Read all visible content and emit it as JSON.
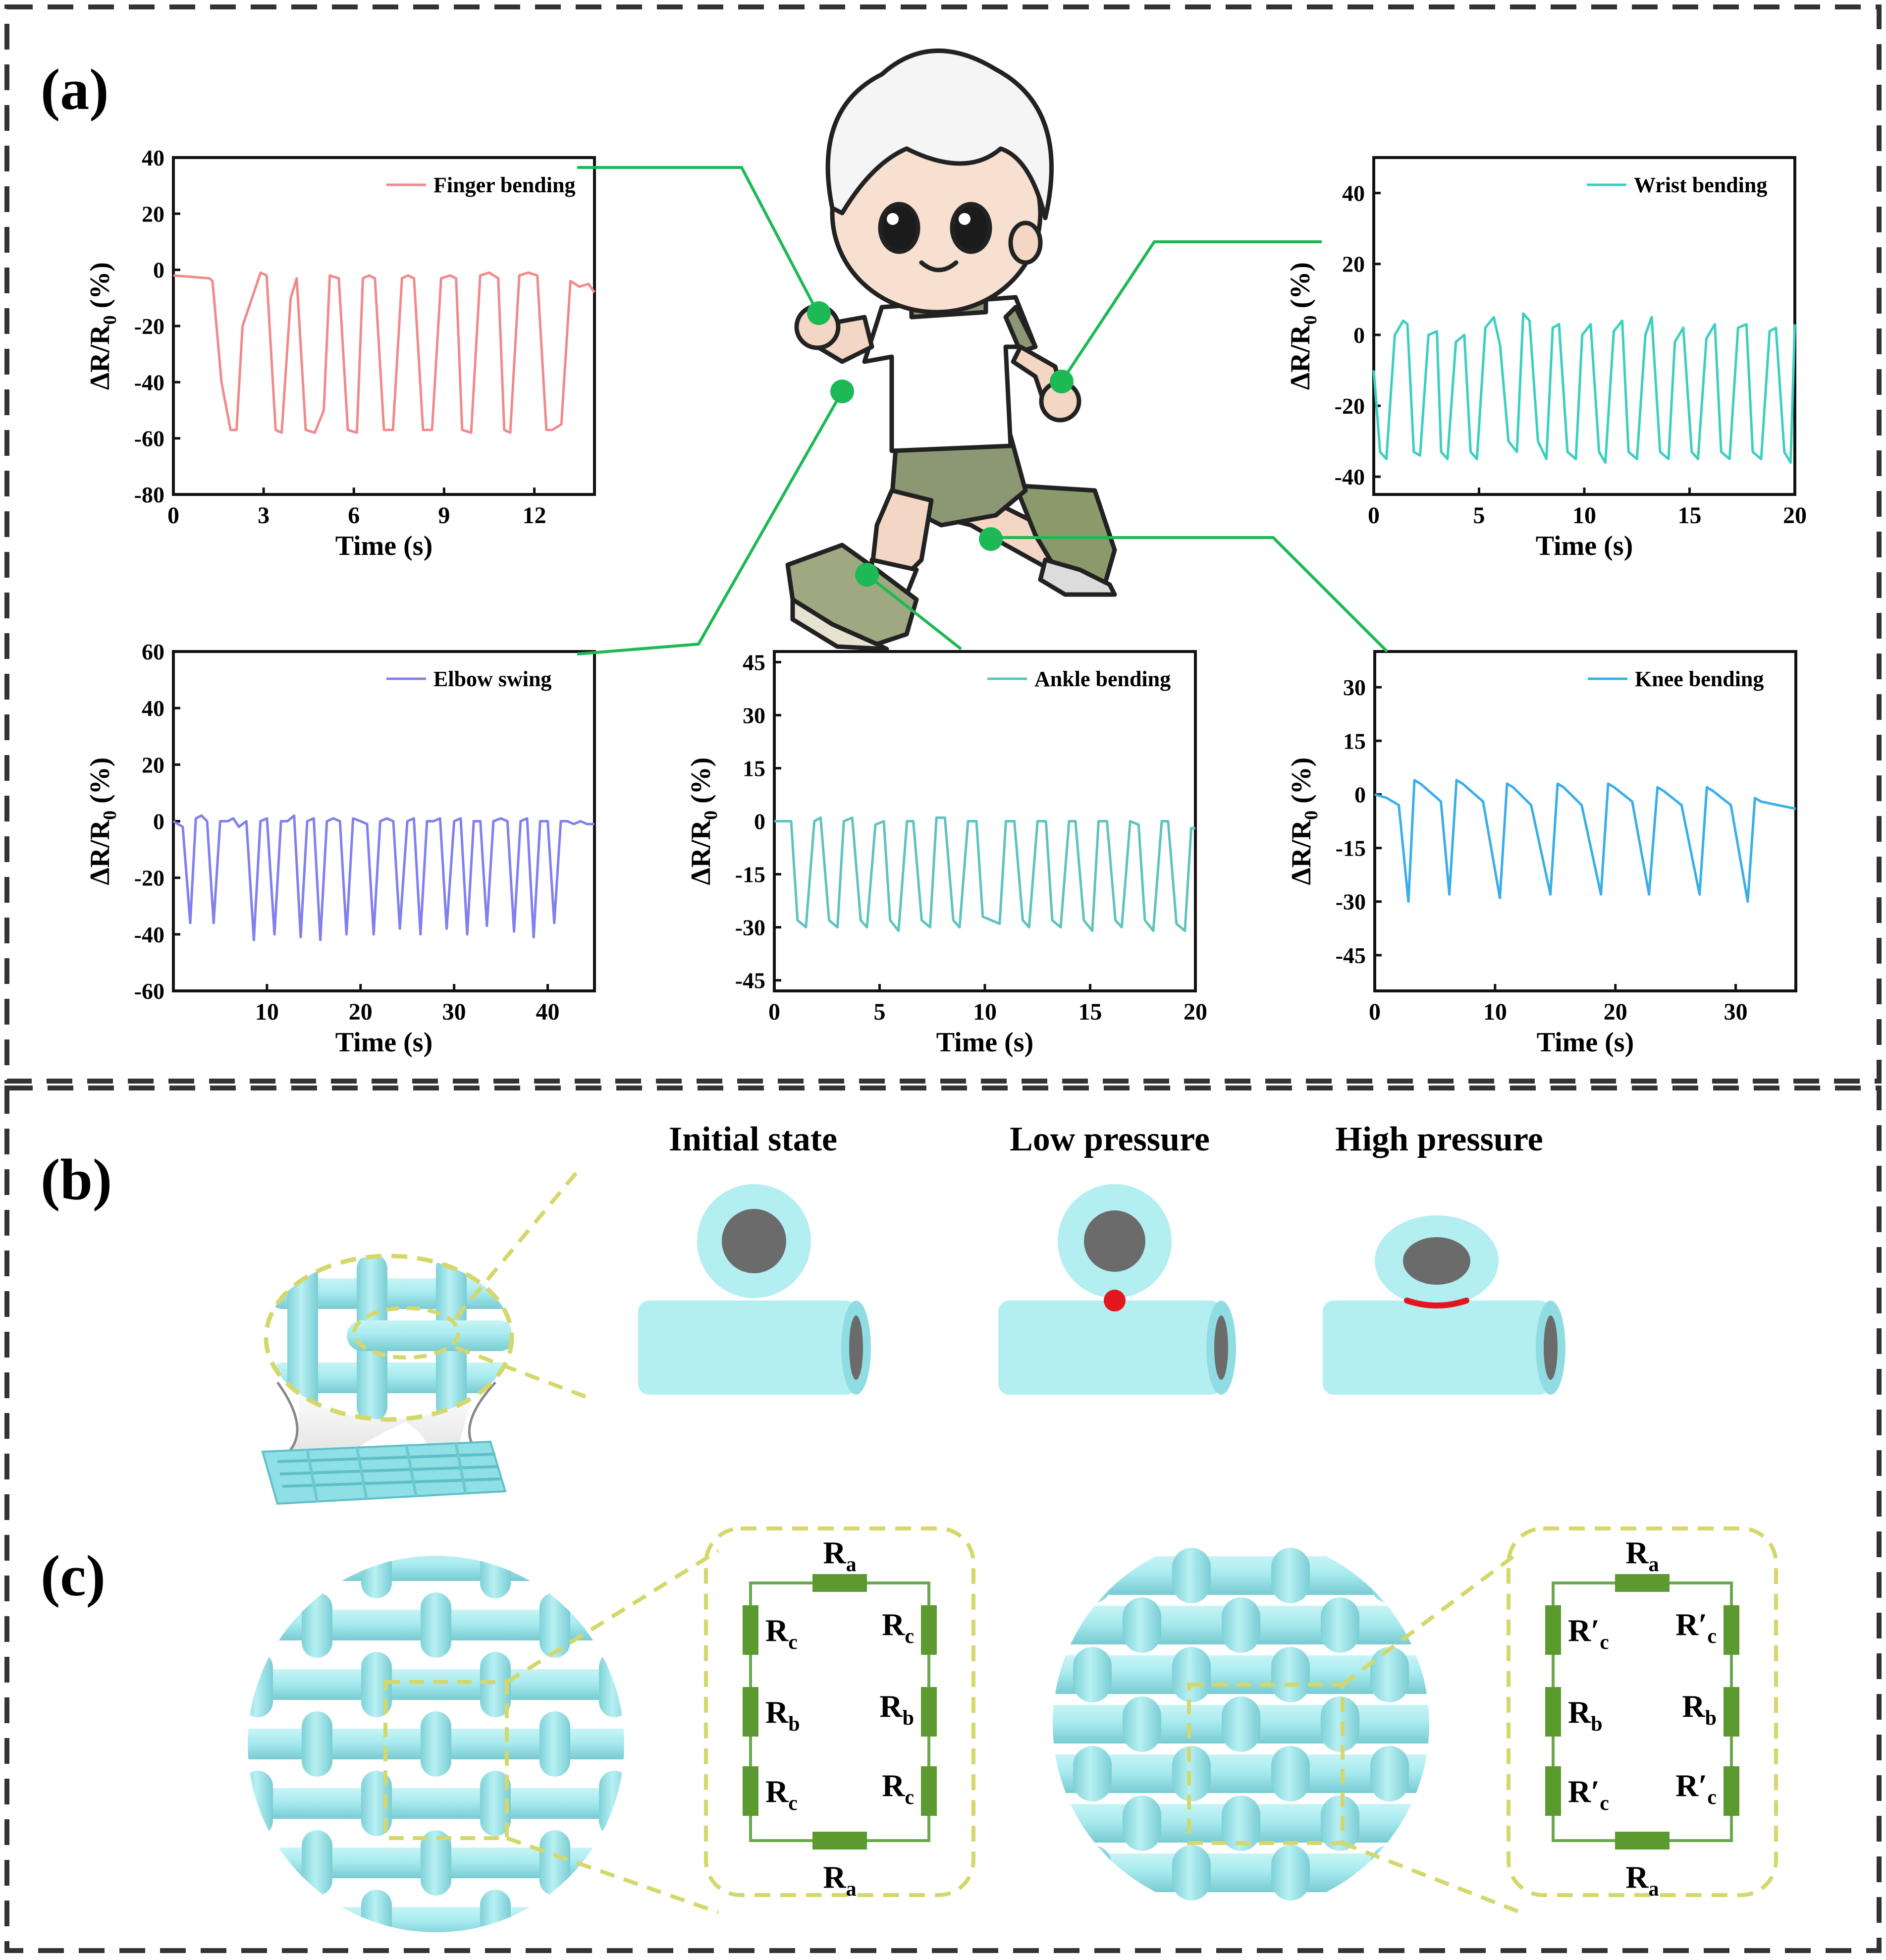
{
  "panel_labels": {
    "a": "(a)",
    "b": "(b)",
    "c": "(c)"
  },
  "chart_data": [
    {
      "type": "line",
      "ylabel": "ΔR/R0 (%)",
      "ylabel_main": "ΔR/R",
      "ylabel_sub": "0",
      "ylabel_tail": " (%)",
      "xlabel": "Time (s)",
      "xlim": [
        0,
        14
      ],
      "ylim": [
        -80,
        40
      ],
      "xticks": [
        0,
        3,
        6,
        9,
        12
      ],
      "yticks": [
        -80,
        -60,
        -40,
        -20,
        0,
        20,
        40
      ],
      "grid": false,
      "legend_position": "top-right",
      "series": [
        {
          "name": "Finger bending",
          "color": "#f08a8a",
          "x": [
            0,
            1.2,
            1.3,
            1.6,
            1.9,
            2.1,
            2.3,
            2.9,
            3.1,
            3.4,
            3.6,
            3.9,
            4.1,
            4.4,
            4.7,
            5.0,
            5.2,
            5.5,
            5.8,
            6.1,
            6.3,
            6.5,
            6.7,
            7.0,
            7.3,
            7.6,
            7.8,
            8.0,
            8.3,
            8.6,
            8.9,
            9.2,
            9.4,
            9.6,
            9.9,
            10.2,
            10.5,
            10.8,
            11.0,
            11.2,
            11.5,
            11.8,
            12.1,
            12.4,
            12.6,
            12.9,
            13.2,
            13.5,
            13.8,
            14.0
          ],
          "y": [
            -2,
            -3,
            -4,
            -40,
            -57,
            -57,
            -20,
            -1,
            -2,
            -57,
            -58,
            -10,
            -3,
            -57,
            -58,
            -50,
            -2,
            -3,
            -57,
            -58,
            -3,
            -2,
            -3,
            -57,
            -57,
            -3,
            -2,
            -3,
            -57,
            -57,
            -3,
            -2,
            -3,
            -57,
            -58,
            -2,
            -1,
            -3,
            -57,
            -58,
            -2,
            -1,
            -2,
            -57,
            -57,
            -55,
            -4,
            -6,
            -5,
            -8
          ]
        }
      ]
    },
    {
      "type": "line",
      "ylabel": "ΔR/R0 (%)",
      "ylabel_main": "ΔR/R",
      "ylabel_sub": "0",
      "ylabel_tail": " (%)",
      "xlabel": "Time (s)",
      "xlim": [
        0,
        20
      ],
      "ylim": [
        -45,
        50
      ],
      "xticks": [
        0,
        5,
        10,
        15,
        20
      ],
      "yticks": [
        -40,
        -20,
        0,
        20,
        40
      ],
      "grid": false,
      "legend_position": "top-right",
      "series": [
        {
          "name": "Wrist bending",
          "color": "#3ccfc0",
          "x": [
            0,
            0.3,
            0.6,
            1.0,
            1.4,
            1.6,
            1.9,
            2.2,
            2.6,
            3.0,
            3.2,
            3.5,
            3.9,
            4.3,
            4.6,
            4.9,
            5.3,
            5.7,
            6.0,
            6.4,
            6.8,
            7.1,
            7.4,
            7.8,
            8.2,
            8.5,
            8.8,
            9.2,
            9.6,
            9.9,
            10.3,
            10.7,
            11.0,
            11.4,
            11.8,
            12.1,
            12.5,
            12.9,
            13.2,
            13.6,
            14.0,
            14.3,
            14.7,
            15.1,
            15.4,
            15.8,
            16.2,
            16.5,
            16.9,
            17.3,
            17.7,
            18.0,
            18.4,
            18.8,
            19.1,
            19.5,
            19.8,
            20.0
          ],
          "y": [
            -10,
            -33,
            -35,
            0,
            4,
            3,
            -33,
            -34,
            0,
            1,
            -33,
            -35,
            -2,
            0,
            -33,
            -35,
            2,
            5,
            -3,
            -30,
            -33,
            6,
            4,
            -30,
            -35,
            2,
            3,
            -33,
            -35,
            0,
            3,
            -33,
            -36,
            1,
            4,
            -33,
            -35,
            0,
            5,
            -33,
            -35,
            -2,
            2,
            -33,
            -35,
            -1,
            3,
            -33,
            -35,
            2,
            3,
            -33,
            -35,
            1,
            2,
            -33,
            -36,
            3
          ]
        }
      ]
    },
    {
      "type": "line",
      "ylabel": "ΔR/R0 (%)",
      "ylabel_main": "ΔR/R",
      "ylabel_sub": "0",
      "ylabel_tail": " (%)",
      "xlabel": "Time (s)",
      "xlim": [
        0,
        45
      ],
      "ylim": [
        -60,
        60
      ],
      "xticks": [
        10,
        20,
        30,
        40
      ],
      "yticks": [
        -60,
        -40,
        -20,
        0,
        20,
        40,
        60
      ],
      "grid": false,
      "legend_position": "top-right",
      "series": [
        {
          "name": "Elbow swing",
          "color": "#8080ee",
          "x": [
            0,
            1.0,
            1.8,
            2.4,
            3.0,
            3.6,
            4.3,
            5.0,
            5.8,
            6.4,
            7.0,
            7.8,
            8.6,
            9.3,
            10.0,
            10.8,
            11.5,
            12.2,
            12.9,
            13.6,
            14.3,
            15.0,
            15.7,
            16.4,
            17.1,
            17.8,
            18.5,
            19.2,
            20.0,
            20.7,
            21.4,
            22.1,
            22.8,
            23.5,
            24.2,
            25.0,
            25.7,
            26.4,
            27.1,
            27.8,
            28.5,
            29.2,
            30.0,
            30.7,
            31.4,
            32.1,
            32.8,
            33.5,
            34.2,
            35.0,
            35.7,
            36.4,
            37.1,
            37.8,
            38.5,
            39.2,
            40.0,
            40.7,
            41.4,
            42.1,
            42.8,
            43.5,
            44.2,
            45.0
          ],
          "y": [
            0,
            -2,
            -36,
            1,
            2,
            0,
            -36,
            0,
            0,
            1,
            -2,
            0,
            -42,
            0,
            1,
            -40,
            0,
            0,
            2,
            -41,
            0,
            1,
            -42,
            0,
            1,
            0,
            -40,
            1,
            0,
            -1,
            -40,
            0,
            1,
            0,
            -38,
            0,
            1,
            -40,
            0,
            0,
            1,
            -38,
            0,
            1,
            -40,
            0,
            0,
            -37,
            0,
            1,
            0,
            -39,
            0,
            1,
            -41,
            0,
            0,
            -36,
            0,
            0,
            -1,
            0,
            -1,
            -1
          ]
        }
      ]
    },
    {
      "type": "line",
      "ylabel": "ΔR/R0 (%)",
      "ylabel_main": "ΔR/R",
      "ylabel_sub": "0",
      "ylabel_tail": " (%)",
      "xlabel": "Time (s)",
      "xlim": [
        0,
        20
      ],
      "ylim": [
        -48,
        48
      ],
      "xticks": [
        0,
        5,
        10,
        15,
        20
      ],
      "yticks": [
        -45,
        -30,
        -15,
        0,
        15,
        30,
        45
      ],
      "grid": false,
      "legend_position": "top-right",
      "series": [
        {
          "name": "Ankle bending",
          "color": "#5cc4c0",
          "x": [
            0,
            0.5,
            0.8,
            1.1,
            1.5,
            1.9,
            2.2,
            2.6,
            3.0,
            3.3,
            3.7,
            4.1,
            4.4,
            4.8,
            5.2,
            5.5,
            5.9,
            6.3,
            6.6,
            7.0,
            7.4,
            7.7,
            8.1,
            8.5,
            8.8,
            9.2,
            9.6,
            9.9,
            10.3,
            10.7,
            11.0,
            11.4,
            11.8,
            12.1,
            12.5,
            12.9,
            13.2,
            13.6,
            14.0,
            14.3,
            14.7,
            15.1,
            15.4,
            15.8,
            16.2,
            16.5,
            16.9,
            17.3,
            17.6,
            18.0,
            18.4,
            18.7,
            19.1,
            19.5,
            19.8,
            20.0
          ],
          "y": [
            0,
            0,
            0,
            -28,
            -30,
            0,
            1,
            -28,
            -30,
            0,
            1,
            -28,
            -30,
            -1,
            0,
            -28,
            -31,
            0,
            0,
            -28,
            -30,
            1,
            1,
            -28,
            -30,
            0,
            0,
            -27,
            -28,
            -29,
            0,
            0,
            -28,
            -30,
            0,
            0,
            -28,
            -30,
            0,
            0,
            -28,
            -31,
            0,
            0,
            -28,
            -30,
            0,
            -1,
            -28,
            -31,
            0,
            0,
            -29,
            -31,
            -2,
            -2
          ]
        }
      ]
    },
    {
      "type": "line",
      "ylabel": "ΔR/R0 (%)",
      "ylabel_main": "ΔR/R",
      "ylabel_sub": "0",
      "ylabel_tail": " (%)",
      "xlabel": "Time (s)",
      "xlim": [
        0,
        35
      ],
      "ylim": [
        -55,
        40
      ],
      "xticks": [
        0,
        10,
        20,
        30
      ],
      "yticks": [
        -45,
        -30,
        -15,
        0,
        15,
        30
      ],
      "grid": false,
      "legend_position": "top-right",
      "series": [
        {
          "name": "Knee bending",
          "color": "#3aaee8",
          "x": [
            0,
            1.0,
            2.0,
            2.8,
            3.3,
            3.8,
            5.5,
            6.2,
            6.8,
            7.3,
            9.0,
            10.4,
            11.0,
            11.5,
            13.0,
            14.6,
            15.2,
            15.7,
            17.2,
            18.8,
            19.4,
            19.9,
            21.4,
            22.8,
            23.5,
            24.0,
            25.5,
            27.0,
            27.6,
            28.1,
            29.6,
            31.0,
            31.6,
            32.1,
            33.5,
            35.0
          ],
          "y": [
            0,
            -1,
            -3,
            -30,
            4,
            3,
            -2,
            -28,
            4,
            3,
            -2,
            -29,
            3,
            2,
            -3,
            -28,
            3,
            2,
            -3,
            -28,
            3,
            2,
            -2,
            -28,
            2,
            1,
            -3,
            -28,
            2,
            1,
            -3,
            -30,
            -1,
            -2,
            -3,
            -4
          ]
        }
      ]
    }
  ],
  "panel_b": {
    "state_titles": [
      "Initial state",
      "Low pressure",
      "High pressure"
    ]
  },
  "panel_c": {
    "left_circuit": {
      "top": "R",
      "top_sub": "a",
      "bottom": "R",
      "bottom_sub": "a",
      "left": [
        [
          "R",
          "c"
        ],
        [
          "R",
          "b"
        ],
        [
          "R",
          "c"
        ]
      ],
      "right": [
        [
          "R",
          "c"
        ],
        [
          "R",
          "b"
        ],
        [
          "R",
          "c"
        ]
      ]
    },
    "right_circuit": {
      "top": "R",
      "top_sub": "a",
      "bottom": "R",
      "bottom_sub": "a",
      "left": [
        [
          "R′",
          "c"
        ],
        [
          "R",
          "b"
        ],
        [
          "R′",
          "c"
        ]
      ],
      "right": [
        [
          "R′",
          "c"
        ],
        [
          "R",
          "b"
        ],
        [
          "R′",
          "c"
        ]
      ]
    }
  },
  "colors": {
    "connector": "#1db954",
    "fiber": "#a8ebef",
    "fiber_dark": "#7fd3d9",
    "core": "#6b6b6b",
    "contact": "#e3161e",
    "circuit_wire": "#6aa84f",
    "resistor": "#5b9a2e",
    "zoom_dash": "#d4d86a",
    "frame_dash": "#333333"
  }
}
